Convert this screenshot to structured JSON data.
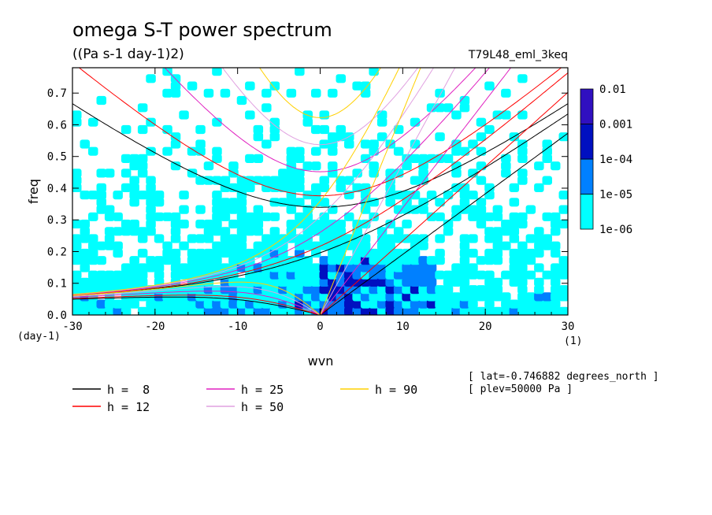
{
  "chart_data": {
    "type": "heatmap",
    "title": "omega S-T power spectrum",
    "subtitle": "((Pa s-1 day-1)2)",
    "run_label": "T79L48_eml_3keq",
    "xlabel": "wvn",
    "ylabel": "freq",
    "x_unit": "(1)",
    "y_unit": "(day-1)",
    "xlim": [
      -30,
      30
    ],
    "ylim": [
      0,
      0.78
    ],
    "x_ticks": [
      "-30",
      "-20",
      "-10",
      "0",
      "10",
      "20",
      "30"
    ],
    "y_ticks": [
      "0.0",
      "0.1",
      "0.2",
      "0.3",
      "0.4",
      "0.5",
      "0.6",
      "0.7"
    ],
    "colorbar": {
      "levels": [
        "1e-06",
        "1e-05",
        "1e-04",
        "0.001",
        "0.01"
      ],
      "colors": [
        "#00ffff",
        "#0080ff",
        "#0010c0",
        "#3010c0"
      ]
    },
    "series": [
      {
        "name": "h =  8",
        "color": "#000000"
      },
      {
        "name": "h = 12",
        "color": "#ff0000"
      },
      {
        "name": "h = 25",
        "color": "#e020c0"
      },
      {
        "name": "h = 50",
        "color": "#e0a0e0"
      },
      {
        "name": "h = 90",
        "color": "#ffd000"
      }
    ],
    "notes": [
      "[ lat=-0.746882 degrees_north ]",
      "[ plev=50000 Pa ]"
    ]
  }
}
